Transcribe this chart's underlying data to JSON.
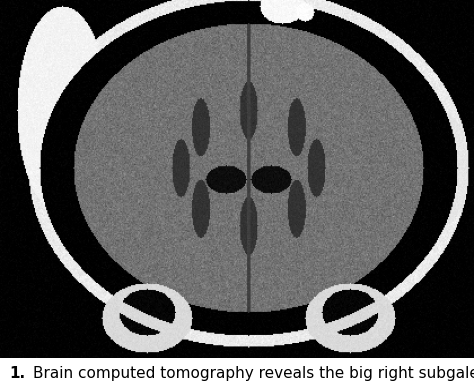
{
  "figure_label": "1.",
  "caption_text": "Brain computed tomography reveals the big right subgaleal",
  "caption_fontsize": 11,
  "fig_width": 4.74,
  "fig_height": 3.89,
  "dpi": 100,
  "background_color": "#ffffff",
  "image_border_color": "#000000",
  "caption_color": "#000000",
  "label_bold": true
}
